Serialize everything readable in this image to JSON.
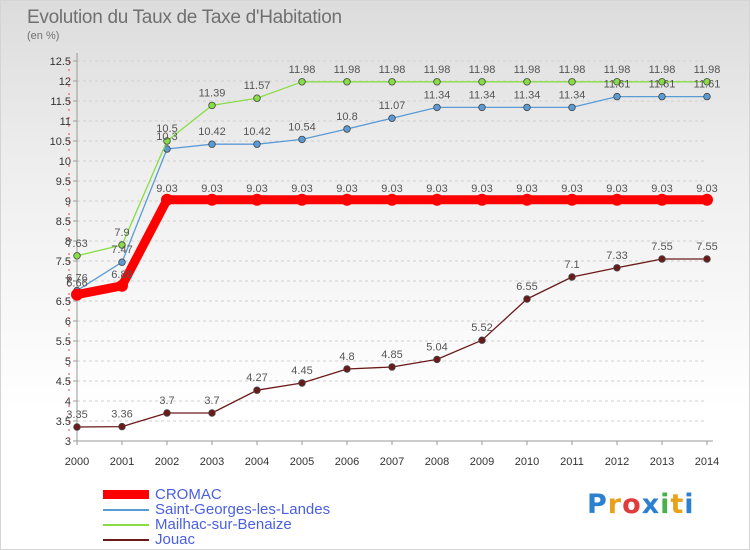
{
  "chart_data": {
    "type": "line",
    "title": "Evolution du Taux de Taxe d'Habitation",
    "ylabel": "(en %)",
    "xlabel": "",
    "x": [
      "2000",
      "2001",
      "2002",
      "2003",
      "2004",
      "2005",
      "2006",
      "2007",
      "2008",
      "2009",
      "2010",
      "2011",
      "2012",
      "2013",
      "2014"
    ],
    "ylim": [
      3,
      12.5
    ],
    "ytick_step": 0.5,
    "grid": "horizontal dashed",
    "legend_position": "bottom-left",
    "series": [
      {
        "name": "CROMAC",
        "color": "#ff0000",
        "values": [
          6.66,
          6.88,
          9.03,
          9.03,
          9.03,
          9.03,
          9.03,
          9.03,
          9.03,
          9.03,
          9.03,
          9.03,
          9.03,
          9.03,
          9.03
        ]
      },
      {
        "name": "Saint-Georges-les-Landes",
        "color": "#5b9bd5",
        "values": [
          6.76,
          7.47,
          10.3,
          10.42,
          10.42,
          10.54,
          10.8,
          11.07,
          11.34,
          11.34,
          11.34,
          11.34,
          11.61,
          11.61,
          11.61
        ]
      },
      {
        "name": "Mailhac-sur-Benaize",
        "color": "#88dd44",
        "values": [
          7.63,
          7.9,
          10.5,
          11.39,
          11.57,
          11.98,
          11.98,
          11.98,
          11.98,
          11.98,
          11.98,
          11.98,
          11.98,
          11.98,
          11.98
        ]
      },
      {
        "name": "Jouac",
        "color": "#6b1a1a",
        "values": [
          3.35,
          3.36,
          3.7,
          3.7,
          4.27,
          4.45,
          4.8,
          4.85,
          5.04,
          5.52,
          6.55,
          7.1,
          7.33,
          7.55,
          7.55
        ]
      }
    ]
  },
  "logo": {
    "letters": [
      "P",
      "r",
      "o",
      "x",
      "i",
      "t",
      "i"
    ],
    "colors": [
      "#2d7fd0",
      "#e8a21a",
      "#e23b3b",
      "#2d7fd0",
      "#46b34a",
      "#e8a21a",
      "#2d7fd0"
    ]
  }
}
